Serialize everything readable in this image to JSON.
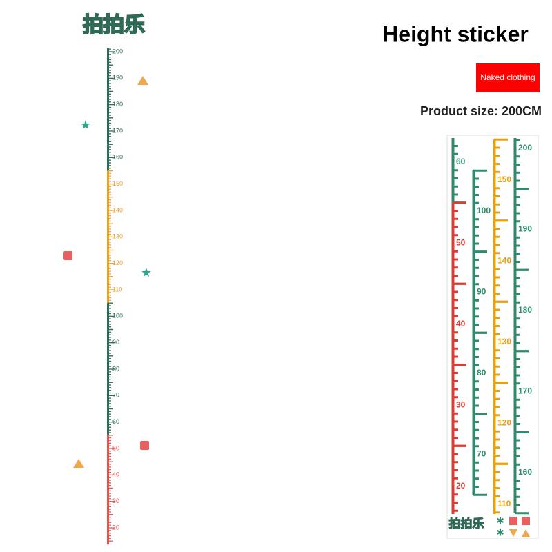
{
  "logo": "拍拍乐",
  "title": "Height sticker",
  "badge": "Naked clothing",
  "size": "Product size: 200CM",
  "ruler": {
    "segments": [
      {
        "color": "#2f6a57",
        "labels": [
          200,
          190,
          180,
          170,
          160
        ]
      },
      {
        "color": "#f0a12a",
        "labels": [
          150,
          140,
          130,
          120,
          110
        ]
      },
      {
        "color": "#2f6a57",
        "labels": [
          100,
          90,
          80,
          70,
          60
        ]
      },
      {
        "color": "#e0534f",
        "labels": [
          50,
          40,
          30,
          20
        ]
      }
    ]
  },
  "strips": [
    {
      "segments": [
        {
          "color": "#2f8a6e",
          "labels": [
            60
          ]
        },
        {
          "color": "#e03a32",
          "labels": [
            50,
            40,
            30,
            20
          ]
        }
      ]
    },
    {
      "segments": [
        {
          "color": "#2f8a6e",
          "labels": [
            100,
            90,
            80,
            70
          ]
        }
      ]
    },
    {
      "segments": [
        {
          "color": "#e8a00e",
          "labels": [
            150,
            140,
            130,
            120,
            110
          ]
        }
      ]
    },
    {
      "segments": [
        {
          "color": "#2f8a6e",
          "labels": [
            200,
            190,
            180,
            170,
            160
          ]
        }
      ]
    }
  ],
  "mini_logo": "拍拍乐"
}
